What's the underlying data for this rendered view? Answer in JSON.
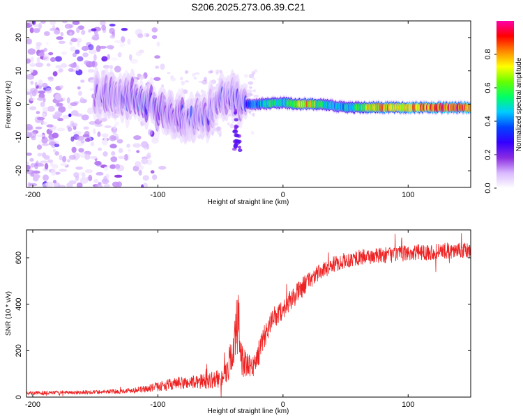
{
  "figure": {
    "title": "S206.2025.273.06.39.C21"
  },
  "chart_data": [
    {
      "type": "heatmap",
      "name": "spectrogram",
      "xlabel": "Height of straight line (km)",
      "ylabel": "Frequency (Hz)",
      "xlim": [
        -205,
        150
      ],
      "ylim": [
        -25,
        25
      ],
      "xticks": [
        -200,
        -100,
        0,
        100
      ],
      "yticks": [
        -20,
        -10,
        0,
        10,
        20
      ],
      "grid": false,
      "colorbar": {
        "label": "Normalized spectral amplitude",
        "range": [
          0.0,
          1.0
        ],
        "ticks": [
          0.0,
          0.2,
          0.4,
          0.6,
          0.8
        ],
        "tick_labels": [
          "0.0",
          "0.2",
          "0.4",
          "0.6",
          "0.8"
        ],
        "colormap": [
          "#ffffff",
          "#d9b8ff",
          "#8a2be2",
          "#3300ff",
          "#0044ff",
          "#00ccff",
          "#00ff66",
          "#66ff00",
          "#ffff00",
          "#ff8800",
          "#ff0000",
          "#ff00aa"
        ]
      },
      "ridge": [
        {
          "x": -150,
          "f": 2.5,
          "a": 0.2
        },
        {
          "x": -140,
          "f": 2.5,
          "a": 0.25
        },
        {
          "x": -130,
          "f": 2.5,
          "a": 0.25
        },
        {
          "x": -120,
          "f": 1.5,
          "a": 0.3
        },
        {
          "x": -110,
          "f": 0.5,
          "a": 0.35
        },
        {
          "x": -100,
          "f": -1.5,
          "a": 0.3
        },
        {
          "x": -90,
          "f": -3.0,
          "a": 0.25
        },
        {
          "x": -80,
          "f": -4.0,
          "a": 0.25
        },
        {
          "x": -70,
          "f": -4.0,
          "a": 0.25
        },
        {
          "x": -60,
          "f": -3.0,
          "a": 0.25
        },
        {
          "x": -50,
          "f": 2.0,
          "a": 0.25
        },
        {
          "x": -40,
          "f": 1.5,
          "a": 0.25
        },
        {
          "x": -30,
          "f": 0.0,
          "a": 0.3
        },
        {
          "x": -20,
          "f": 0.0,
          "a": 0.4
        },
        {
          "x": -10,
          "f": 0.2,
          "a": 0.55
        },
        {
          "x": 0,
          "f": 0.5,
          "a": 0.45
        },
        {
          "x": 10,
          "f": 0.0,
          "a": 0.65
        },
        {
          "x": 20,
          "f": 0.0,
          "a": 0.75
        },
        {
          "x": 30,
          "f": 0.0,
          "a": 0.55
        },
        {
          "x": 40,
          "f": -0.5,
          "a": 0.45
        },
        {
          "x": 50,
          "f": -1.0,
          "a": 0.45
        },
        {
          "x": 60,
          "f": -1.0,
          "a": 0.55
        },
        {
          "x": 70,
          "f": -1.0,
          "a": 0.7
        },
        {
          "x": 80,
          "f": -1.0,
          "a": 0.8
        },
        {
          "x": 90,
          "f": -1.0,
          "a": 0.7
        },
        {
          "x": 100,
          "f": -1.0,
          "a": 0.8
        },
        {
          "x": 110,
          "f": -1.0,
          "a": 0.8
        },
        {
          "x": 120,
          "f": -1.0,
          "a": 0.85
        },
        {
          "x": 130,
          "f": -1.0,
          "a": 0.85
        },
        {
          "x": 140,
          "f": -1.0,
          "a": 0.85
        },
        {
          "x": 150,
          "f": -1.0,
          "a": 0.85
        }
      ]
    },
    {
      "type": "line",
      "name": "snr",
      "xlabel": "Height of straight line (km)",
      "ylabel": "SNR (10 * v/v)",
      "xlim": [
        -205,
        150
      ],
      "ylim": [
        0,
        720
      ],
      "xticks": [
        -200,
        -100,
        0,
        100
      ],
      "yticks": [
        0,
        200,
        400,
        600
      ],
      "grid": false,
      "color": "#ee2222",
      "series": [
        {
          "x": [
            -205,
            -190,
            -170,
            -150,
            -130,
            -120,
            -110,
            -100,
            -90,
            -80,
            -70,
            -60,
            -50,
            -45,
            -40,
            -36,
            -33,
            -30,
            -25,
            -20,
            -15,
            -10,
            -5,
            0,
            5,
            10,
            15,
            20,
            25,
            30,
            35,
            40,
            50,
            60,
            70,
            80,
            90,
            100,
            110,
            120,
            130,
            140,
            150
          ],
          "values": [
            18,
            18,
            20,
            22,
            25,
            30,
            35,
            45,
            55,
            60,
            65,
            70,
            80,
            110,
            200,
            320,
            180,
            140,
            120,
            180,
            260,
            320,
            350,
            380,
            410,
            440,
            470,
            500,
            520,
            540,
            555,
            570,
            590,
            600,
            605,
            610,
            615,
            620,
            625,
            625,
            630,
            630,
            630
          ],
          "noise": [
            8,
            8,
            8,
            9,
            10,
            12,
            15,
            20,
            25,
            28,
            30,
            35,
            40,
            55,
            90,
            170,
            90,
            60,
            50,
            55,
            50,
            45,
            45,
            45,
            45,
            45,
            45,
            40,
            38,
            35,
            35,
            35,
            35,
            35,
            35,
            35,
            35,
            35,
            35,
            35,
            35,
            35,
            35
          ]
        }
      ]
    }
  ]
}
